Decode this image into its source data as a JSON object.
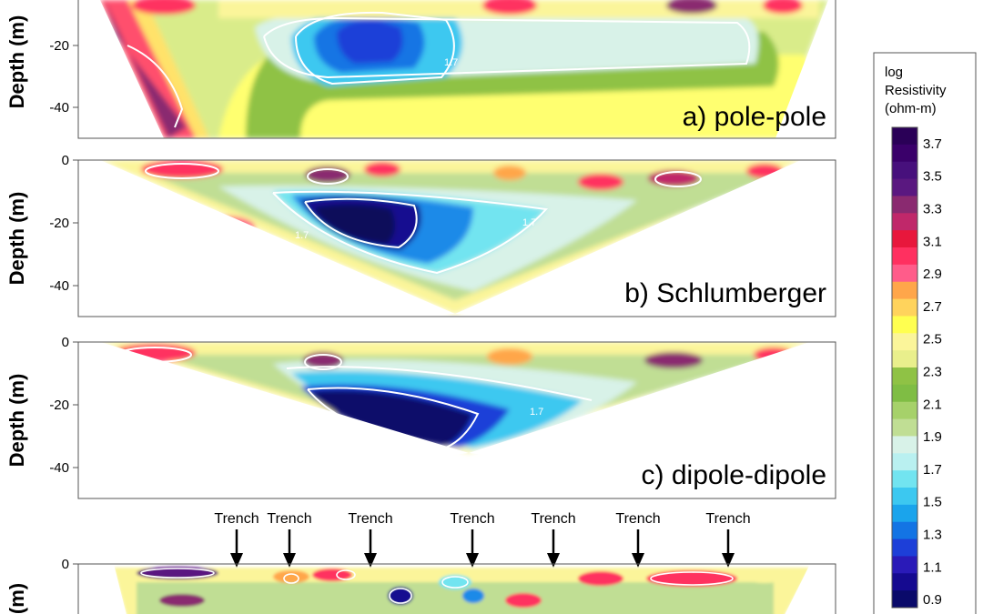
{
  "chart_data": [
    {
      "type": "heatmap",
      "panel": "a",
      "title": "a) pole-pole",
      "ylabel": "Depth (m)",
      "yticks": [
        -20,
        -40
      ],
      "contour_labels": [
        "1.7"
      ]
    },
    {
      "type": "heatmap",
      "panel": "b",
      "title": "b) Schlumberger",
      "ylabel": "Depth (m)",
      "yticks": [
        0,
        -20,
        -40
      ],
      "contour_labels": [
        "1.7",
        "1.7"
      ]
    },
    {
      "type": "heatmap",
      "panel": "c",
      "title": "c) dipole-dipole",
      "ylabel": "Depth (m)",
      "yticks": [
        0,
        -20,
        -40
      ],
      "contour_labels": [
        "1.7"
      ]
    },
    {
      "type": "heatmap",
      "panel": "d",
      "ylabel": "(m)",
      "yticks": [
        0
      ],
      "annotations": [
        "Trench",
        "Trench",
        "Trench",
        "Trench",
        "Trench",
        "Trench",
        "Trench"
      ]
    }
  ],
  "colorbar": {
    "title_lines": [
      "log",
      "Resistivity",
      "(ohm-m)"
    ],
    "tick_labels": [
      "3.7",
      "3.5",
      "3.3",
      "3.1",
      "2.9",
      "2.7",
      "2.5",
      "2.3",
      "2.1",
      "1.9",
      "1.7",
      "1.5",
      "1.3",
      "1.1",
      "0.9"
    ],
    "tick_values": [
      3.7,
      3.5,
      3.3,
      3.1,
      2.9,
      2.7,
      2.5,
      2.3,
      2.1,
      1.9,
      1.7,
      1.5,
      1.3,
      1.1,
      0.9
    ],
    "colors": [
      "#2a0057",
      "#3a006a",
      "#47107c",
      "#5a1880",
      "#8a2a70",
      "#c0286a",
      "#e8173c",
      "#ff3060",
      "#ff5c8a",
      "#ffa64a",
      "#ffd35c",
      "#ffff50",
      "#fbf59a",
      "#e9ef8c",
      "#8fc245",
      "#7fbd44",
      "#a6d16a",
      "#c0de94",
      "#d8f2e8",
      "#b9f0f0",
      "#72e4f0",
      "#3cc8f0",
      "#1aa4ec",
      "#1374e4",
      "#1d3fd8",
      "#2a1ab8",
      "#150a90",
      "#0a0a6a"
    ]
  },
  "colors": {
    "frame": "#555555",
    "contour": "#ffffff",
    "arrow": "#000000"
  }
}
